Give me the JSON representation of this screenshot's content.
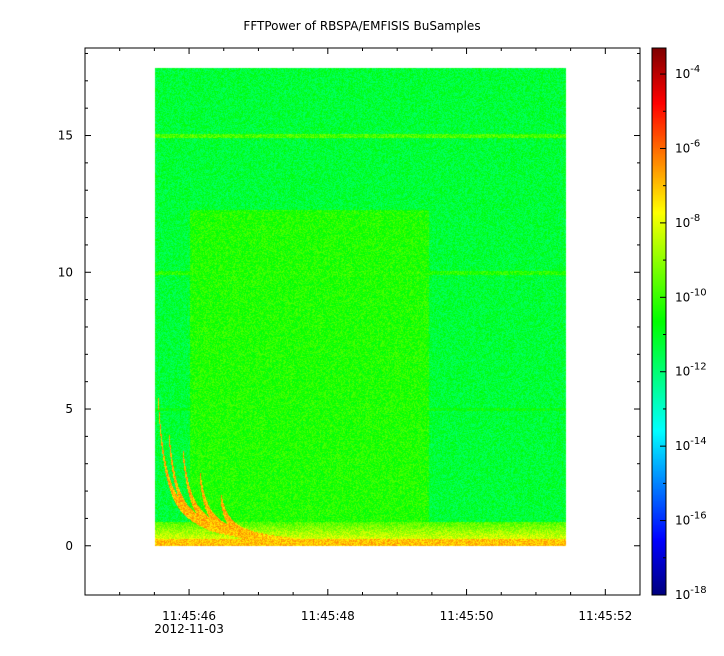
{
  "chart_data": {
    "type": "heatmap",
    "title": "FFTPower of RBSPA/EMFISIS  BuSamples",
    "xlabel": "",
    "ylabel": "",
    "x_tick_labels": [
      "11:45:46",
      "11:45:48",
      "11:45:50",
      "11:45:52"
    ],
    "x_tick_seconds": [
      46,
      48,
      50,
      52
    ],
    "x_date_label": "2012-11-03",
    "x_range_seconds": [
      44.5,
      52.5
    ],
    "data_x_range_seconds": [
      45.5,
      51.43
    ],
    "ylim": [
      -1.8,
      18.2
    ],
    "data_y_range": [
      0,
      17.5
    ],
    "y_ticks": [
      0,
      5,
      10,
      15
    ],
    "colorbar": {
      "scale": "log",
      "range_exponent": [
        -18,
        -3.3
      ],
      "tick_base": "10",
      "tick_exponents": [
        "-18",
        "-16",
        "-14",
        "-12",
        "-10",
        "-8",
        "-6",
        "-4"
      ],
      "colormap": [
        "#00007f",
        "#0000ff",
        "#007fff",
        "#00ffff",
        "#00ff7f",
        "#00ff00",
        "#7fff00",
        "#ffff00",
        "#ff7f00",
        "#ff0000",
        "#7f0000"
      ]
    },
    "features": {
      "background_power_exponent": -11.3,
      "elevated_block": {
        "x_seconds": [
          46.0,
          49.45
        ],
        "y": [
          0,
          12.3
        ],
        "power_exponent": -10.3
      },
      "horizontal_lines": [
        {
          "y": 15.0,
          "power_exponent": -9.8
        },
        {
          "y": 10.0,
          "power_exponent": -10.2
        },
        {
          "y": 5.0,
          "power_exponent": -10.7
        }
      ],
      "low_frequency_band": {
        "y": [
          0,
          0.9
        ],
        "power_exponent": -7.5
      },
      "whistler_traces": [
        {
          "x_start_seconds": 45.55,
          "y_top": 5.3
        },
        {
          "x_start_seconds": 45.7,
          "y_top": 4.2
        },
        {
          "x_start_seconds": 45.9,
          "y_top": 3.6
        },
        {
          "x_start_seconds": 46.15,
          "y_top": 2.6
        },
        {
          "x_start_seconds": 46.45,
          "y_top": 1.8
        }
      ]
    }
  }
}
